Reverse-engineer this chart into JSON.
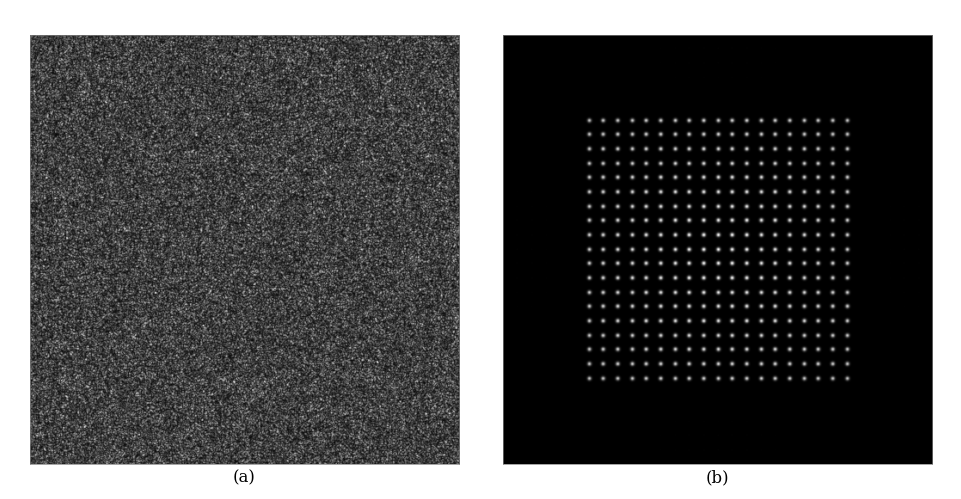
{
  "fig_width": 9.62,
  "fig_height": 4.99,
  "dpi": 100,
  "bg_color": "#ffffff",
  "label_a": "(a)",
  "label_b": "(b)",
  "label_fontsize": 12
}
